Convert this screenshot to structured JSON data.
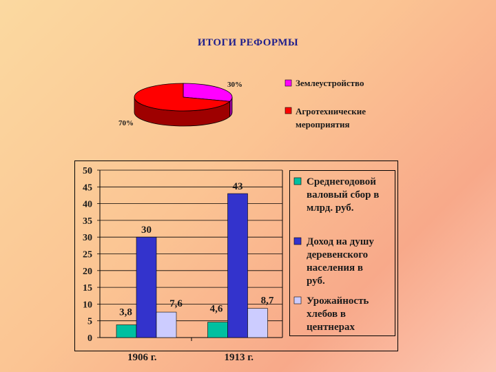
{
  "title": "ИТОГИ РЕФОРМЫ",
  "chart_data": [
    {
      "type": "pie",
      "title": "",
      "slices": [
        {
          "label": "Землеустройство",
          "value": 30,
          "value_label": "30%",
          "color": "#ff00ff"
        },
        {
          "label": "Агротехнические мероприятия",
          "value": 70,
          "value_label": "70%",
          "color": "#ff0000"
        }
      ],
      "legend_position": "right"
    },
    {
      "type": "bar",
      "title": "",
      "categories": [
        "1906 г.",
        "1913 г."
      ],
      "series": [
        {
          "name": "Среднегодовой валовый сбор в млрд. руб.",
          "values": [
            3.8,
            4.6
          ],
          "labels": [
            "3,8",
            "4,6"
          ],
          "color": "#00c0a0"
        },
        {
          "name": "Доход на душу деревенского населения в руб.",
          "values": [
            30,
            43
          ],
          "labels": [
            "30",
            "43"
          ],
          "color": "#3333cc"
        },
        {
          "name": "Урожайность хлебов в центнерах",
          "values": [
            7.6,
            8.7
          ],
          "labels": [
            "7,6",
            "8,7"
          ],
          "color": "#ccccff"
        }
      ],
      "ylim": [
        0,
        50
      ],
      "yticks": [
        "0",
        "5",
        "10",
        "15",
        "20",
        "25",
        "30",
        "35",
        "40",
        "45",
        "50"
      ],
      "grid": true,
      "legend_position": "right"
    }
  ]
}
